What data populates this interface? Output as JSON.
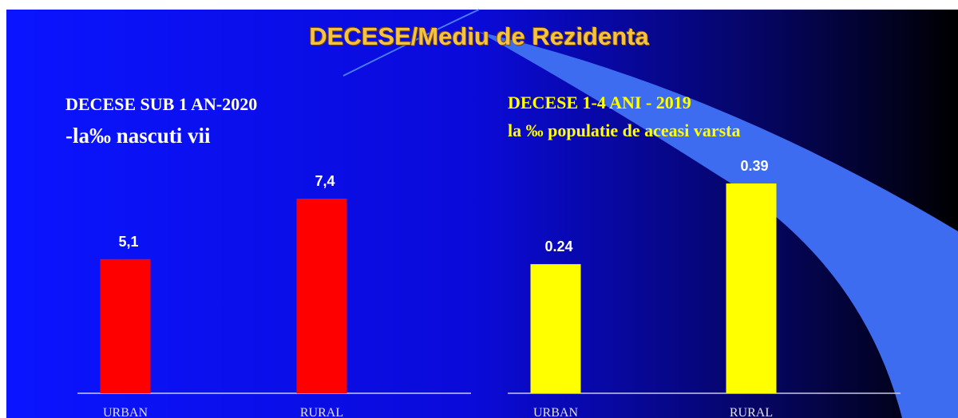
{
  "slide_title": "DECESE/Mediu de Rezidenta",
  "chart_data": [
    {
      "type": "bar",
      "title": "DECESE SUB 1 AN-2020",
      "subtitle": "-la‰ nascuti vii",
      "categories": [
        "URBAN",
        "RURAL"
      ],
      "values": [
        5.1,
        7.4
      ],
      "value_labels": [
        "5,1",
        "7,4"
      ],
      "color": "#ff0000"
    },
    {
      "type": "bar",
      "title": "DECESE 1-4 ANI - 2019",
      "subtitle": "la ‰ populatie de aceasi varsta",
      "categories": [
        "URBAN",
        "RURAL"
      ],
      "values": [
        0.24,
        0.39
      ],
      "color": "#ffff00"
    }
  ]
}
